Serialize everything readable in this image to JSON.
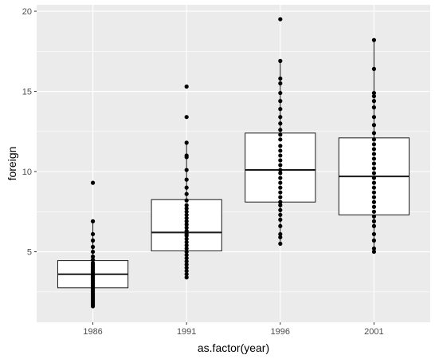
{
  "chart_data": {
    "type": "boxplot",
    "xlabel": "as.factor(year)",
    "ylabel": "foreign",
    "categories": [
      "1986",
      "1991",
      "1996",
      "2001"
    ],
    "ylim": [
      0.6,
      20.4
    ],
    "yticks": [
      5,
      10,
      15,
      20
    ],
    "grid": true,
    "legend": "none",
    "colors": {
      "panel": "#ebebeb",
      "grid": "#ffffff",
      "box_fill": "#ffffff",
      "stroke": "#1a1a1a",
      "point": "#000000"
    },
    "boxes": [
      {
        "category": "1986",
        "min": 1.7,
        "q1": 2.75,
        "median": 3.6,
        "q3": 4.45,
        "max": 6.9
      },
      {
        "category": "1991",
        "min": 3.4,
        "q1": 5.05,
        "median": 6.2,
        "q3": 8.25,
        "max": 11.8
      },
      {
        "category": "1996",
        "min": 5.5,
        "q1": 8.1,
        "median": 10.1,
        "q3": 12.4,
        "max": 16.9
      },
      {
        "category": "2001",
        "min": 5.0,
        "q1": 7.3,
        "median": 9.7,
        "q3": 12.1,
        "max": 18.2
      }
    ],
    "points": [
      {
        "category": "1986",
        "values": [
          1.6,
          1.7,
          1.8,
          1.9,
          2.0,
          2.1,
          2.2,
          2.3,
          2.4,
          2.5,
          2.6,
          2.7,
          2.8,
          2.9,
          3.0,
          3.1,
          3.2,
          3.3,
          3.4,
          3.5,
          3.6,
          3.7,
          3.8,
          3.9,
          4.0,
          4.1,
          4.2,
          4.3,
          4.5,
          4.7,
          5.0,
          5.3,
          5.7,
          6.1,
          6.9,
          9.3
        ]
      },
      {
        "category": "1991",
        "values": [
          3.4,
          3.6,
          3.8,
          4.0,
          4.2,
          4.4,
          4.6,
          4.8,
          5.0,
          5.2,
          5.4,
          5.6,
          5.8,
          6.0,
          6.1,
          6.3,
          6.5,
          6.7,
          6.9,
          7.1,
          7.3,
          7.5,
          7.7,
          7.9,
          8.2,
          8.6,
          9.0,
          9.5,
          10.1,
          10.9,
          11.0,
          11.8,
          13.4,
          15.3
        ]
      },
      {
        "category": "1996",
        "values": [
          5.5,
          5.9,
          6.1,
          6.6,
          7.0,
          7.3,
          7.6,
          7.9,
          8.1,
          8.4,
          8.7,
          9.0,
          9.3,
          9.6,
          9.9,
          10.1,
          10.4,
          10.7,
          11.0,
          11.3,
          11.6,
          12.0,
          12.3,
          12.6,
          13.0,
          13.4,
          13.9,
          14.4,
          14.9,
          15.5,
          15.8,
          16.9,
          19.5
        ]
      },
      {
        "category": "2001",
        "values": [
          5.0,
          5.2,
          5.7,
          6.1,
          6.6,
          6.9,
          7.2,
          7.5,
          7.8,
          8.1,
          8.4,
          8.7,
          9.0,
          9.3,
          9.6,
          9.9,
          10.2,
          10.5,
          10.8,
          11.1,
          11.4,
          11.7,
          12.0,
          12.4,
          12.9,
          13.4,
          14.0,
          14.4,
          14.7,
          14.9,
          16.4,
          18.2
        ]
      }
    ]
  }
}
